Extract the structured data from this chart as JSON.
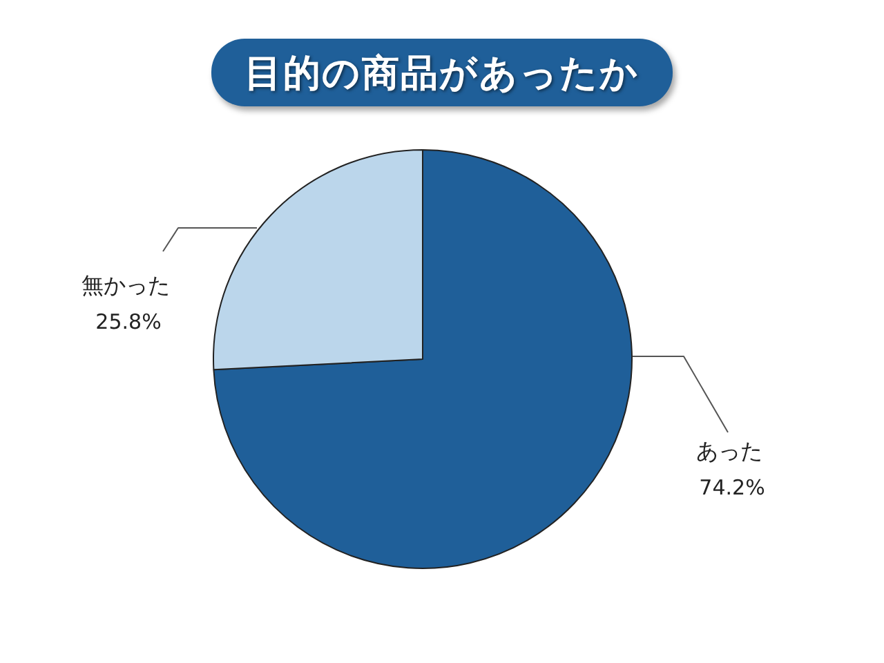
{
  "chart_data": {
    "type": "pie",
    "title": "目的の商品があったか",
    "categories": [
      "あった",
      "無かった"
    ],
    "values": [
      74.2,
      25.8
    ],
    "colors": [
      "#1f5f99",
      "#bbd6eb"
    ],
    "value_labels": [
      "74.2%",
      "25.8%"
    ],
    "legend": false
  }
}
